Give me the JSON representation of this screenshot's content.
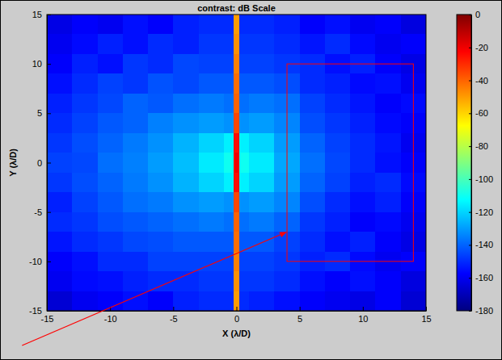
{
  "chart_data": {
    "type": "heatmap",
    "title": "contrast: dB Scale",
    "x_label": "X (λ/D)",
    "y_label": "Y (λ/D)",
    "xlim": [
      -15,
      15
    ],
    "ylim": [
      -15,
      15
    ],
    "xticks": [
      -15,
      -10,
      -5,
      0,
      5,
      10,
      15
    ],
    "yticks": [
      -15,
      -10,
      -5,
      0,
      5,
      10,
      15
    ],
    "x_edges": [
      -15,
      -13,
      -11,
      -9,
      -7,
      -5,
      -3,
      -1,
      -0.2,
      0.2,
      1,
      3,
      5,
      7,
      9,
      11,
      13,
      15
    ],
    "y_edges": [
      15,
      13,
      11,
      9,
      7,
      5,
      3,
      1,
      -1,
      -3,
      -5,
      -7,
      -9,
      -11,
      -13,
      -15
    ],
    "cells": [
      [
        -162,
        -158,
        -160,
        -155,
        -158,
        -152,
        -150,
        -150,
        -50,
        -150,
        -150,
        -152,
        -158,
        -155,
        -160,
        -158,
        -163
      ],
      [
        -160,
        -156,
        -152,
        -155,
        -150,
        -152,
        -148,
        -148,
        -48,
        -148,
        -148,
        -150,
        -154,
        -150,
        -156,
        -160,
        -158
      ],
      [
        -158,
        -152,
        -155,
        -148,
        -150,
        -145,
        -146,
        -146,
        -45,
        -146,
        -146,
        -148,
        -150,
        -155,
        -152,
        -158,
        -162
      ],
      [
        -155,
        -150,
        -146,
        -148,
        -143,
        -145,
        -142,
        -142,
        -42,
        -142,
        -142,
        -144,
        -150,
        -152,
        -156,
        -155,
        -160
      ],
      [
        -152,
        -148,
        -145,
        -140,
        -142,
        -138,
        -136,
        -138,
        -40,
        -138,
        -136,
        -138,
        -146,
        -150,
        -154,
        -158,
        -156
      ],
      [
        -150,
        -146,
        -142,
        -140,
        -135,
        -132,
        -130,
        -132,
        -35,
        -132,
        -130,
        -134,
        -144,
        -148,
        -152,
        -156,
        -158
      ],
      [
        -148,
        -144,
        -140,
        -136,
        -132,
        -126,
        -120,
        -115,
        -25,
        -115,
        -120,
        -130,
        -140,
        -146,
        -150,
        -154,
        -160
      ],
      [
        -146,
        -145,
        -138,
        -135,
        -130,
        -124,
        -116,
        -110,
        -20,
        -110,
        -116,
        -128,
        -138,
        -145,
        -150,
        -155,
        -158
      ],
      [
        -148,
        -144,
        -140,
        -136,
        -132,
        -126,
        -120,
        -115,
        -25,
        -115,
        -120,
        -130,
        -140,
        -146,
        -152,
        -150,
        -156
      ],
      [
        -152,
        -146,
        -142,
        -138,
        -136,
        -132,
        -130,
        -132,
        -35,
        -132,
        -130,
        -134,
        -144,
        -150,
        -155,
        -152,
        -158
      ],
      [
        -150,
        -148,
        -144,
        -142,
        -140,
        -138,
        -136,
        -138,
        -40,
        -138,
        -136,
        -140,
        -148,
        -152,
        -158,
        -156,
        -160
      ],
      [
        -154,
        -150,
        -148,
        -145,
        -144,
        -142,
        -142,
        -142,
        -42,
        -142,
        -142,
        -146,
        -150,
        -155,
        -152,
        -158,
        -162
      ],
      [
        -158,
        -155,
        -150,
        -150,
        -146,
        -146,
        -146,
        -146,
        -45,
        -146,
        -146,
        -148,
        -152,
        -150,
        -156,
        -160,
        -158
      ],
      [
        -160,
        -156,
        -155,
        -152,
        -150,
        -150,
        -148,
        -148,
        -48,
        -148,
        -148,
        -150,
        -155,
        -158,
        -155,
        -158,
        -163
      ],
      [
        -165,
        -160,
        -158,
        -155,
        -158,
        -152,
        -150,
        -150,
        -50,
        -150,
        -152,
        -155,
        -158,
        -160,
        -162,
        -158,
        -165
      ]
    ],
    "colorbar": {
      "lim": [
        -180,
        0
      ],
      "ticks": [
        0,
        -20,
        -40,
        -60,
        -80,
        -100,
        -120,
        -140,
        -160,
        -180
      ]
    },
    "region": {
      "x": [
        4,
        14
      ],
      "y": [
        -10,
        10
      ],
      "color": "#ff0000"
    }
  }
}
